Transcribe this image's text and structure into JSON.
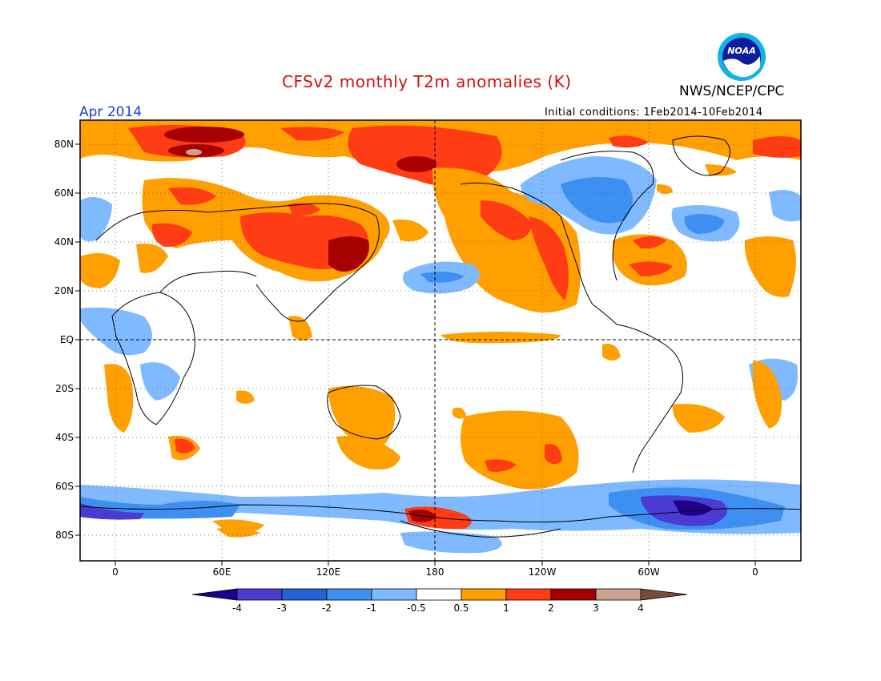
{
  "header": {
    "title": "CFSv2 monthly T2m anomalies (K)",
    "period": "Apr 2014",
    "initial_conditions": "Initial conditions: 1Feb2014-10Feb2014",
    "agency": "NWS/NCEP/CPC",
    "logo_text": "NOAA"
  },
  "map": {
    "lat_labels": [
      "80N",
      "60N",
      "40N",
      "20N",
      "EQ",
      "20S",
      "40S",
      "60S",
      "80S"
    ],
    "lon_labels": [
      "0",
      "60E",
      "120E",
      "180",
      "120W",
      "60W",
      "0"
    ],
    "projection": "cylindrical equidistant",
    "grid": "dotted",
    "reference_lines": [
      "EQ",
      "180"
    ]
  },
  "colorbar": {
    "tick_labels": [
      "-4",
      "-3",
      "-2",
      "-1",
      "-0.5",
      "0.5",
      "1",
      "2",
      "3",
      "4"
    ],
    "colors": [
      "#1e008c",
      "#4b3bd2",
      "#2362d6",
      "#3d8ff2",
      "#7fb9ff",
      "#ffffff",
      "#ff9f00",
      "#ff3c14",
      "#a60000",
      "#caa08f",
      "#7a4c3c"
    ]
  }
}
